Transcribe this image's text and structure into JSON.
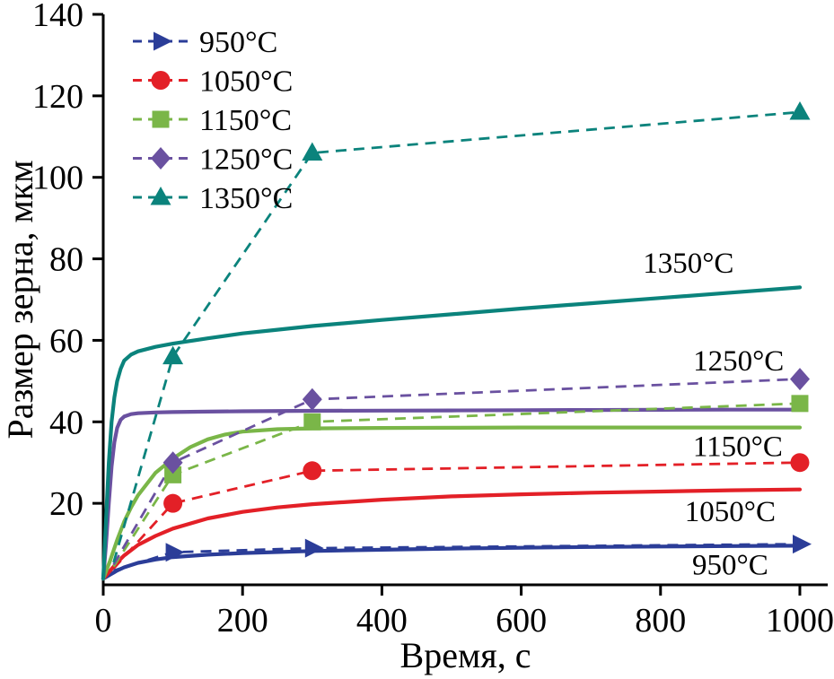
{
  "figure": {
    "xlabel": "Время, с",
    "ylabel": "Размер зерна, мкм"
  },
  "chart_data": {
    "type": "line",
    "title": "",
    "xlabel": "Время, с",
    "ylabel": "Размер зерна, мкм",
    "xlim": [
      0,
      1040
    ],
    "ylim": [
      0,
      140
    ],
    "xticks": [
      0,
      200,
      400,
      600,
      800,
      1000
    ],
    "yticks": [
      20,
      40,
      60,
      80,
      100,
      120,
      140
    ],
    "grid": false,
    "legend_position": "top-left",
    "axis_color": "#000000",
    "series": [
      {
        "name": "950°C",
        "color": "#2b3d98",
        "marker": "triangle-right",
        "experimental": {
          "x": [
            15,
            100,
            300,
            1000
          ],
          "y": [
            3.5,
            8,
            9,
            10
          ],
          "marker_start_index": 1
        },
        "model": {
          "x": [
            0,
            10,
            20,
            30,
            50,
            75,
            100,
            150,
            200,
            300,
            400,
            500,
            600,
            700,
            800,
            900,
            1000
          ],
          "y": [
            1.5,
            2.5,
            3.5,
            4.3,
            5.4,
            6.2,
            6.8,
            7.4,
            7.8,
            8.3,
            8.6,
            8.9,
            9.1,
            9.3,
            9.4,
            9.5,
            9.6
          ]
        }
      },
      {
        "name": "1050°C",
        "color": "#e32027",
        "marker": "circle",
        "experimental": {
          "x": [
            15,
            100,
            300,
            1000
          ],
          "y": [
            4,
            20,
            28,
            30
          ],
          "marker_start_index": 1
        },
        "model": {
          "x": [
            0,
            10,
            20,
            30,
            50,
            75,
            100,
            150,
            200,
            250,
            300,
            400,
            500,
            600,
            700,
            800,
            900,
            1000
          ],
          "y": [
            1.5,
            3.5,
            5.5,
            7.2,
            9.8,
            12,
            13.8,
            16.3,
            17.9,
            19,
            19.8,
            20.9,
            21.7,
            22.2,
            22.6,
            22.9,
            23.2,
            23.4
          ]
        }
      },
      {
        "name": "1150°C",
        "color": "#7ab648",
        "marker": "square",
        "experimental": {
          "x": [
            15,
            100,
            300,
            1000
          ],
          "y": [
            4.5,
            27,
            40,
            44.5
          ],
          "marker_start_index": 1
        },
        "model": {
          "x": [
            0,
            10,
            20,
            30,
            40,
            50,
            75,
            100,
            125,
            150,
            175,
            200,
            250,
            300,
            400,
            500,
            600,
            800,
            1000
          ],
          "y": [
            1.5,
            6,
            11,
            15.5,
            19,
            22,
            27.5,
            31,
            33.8,
            35.7,
            36.9,
            37.6,
            38.2,
            38.4,
            38.5,
            38.55,
            38.6,
            38.6,
            38.6
          ]
        }
      },
      {
        "name": "1250°C",
        "color": "#6a51a0",
        "marker": "diamond",
        "experimental": {
          "x": [
            15,
            100,
            300,
            1000
          ],
          "y": [
            5,
            30,
            45.5,
            50.5
          ],
          "marker_start_index": 1
        },
        "model": {
          "x": [
            0,
            4,
            8,
            12,
            16,
            20,
            25,
            30,
            40,
            50,
            75,
            100,
            150,
            200,
            300,
            400,
            500,
            600,
            700,
            800,
            900,
            1000
          ],
          "y": [
            1.5,
            10,
            20,
            29,
            35,
            38.5,
            40.5,
            41.3,
            41.9,
            42.1,
            42.3,
            42.4,
            42.5,
            42.6,
            42.7,
            42.75,
            42.8,
            42.85,
            42.9,
            42.95,
            43,
            43
          ]
        }
      },
      {
        "name": "1350°C",
        "color": "#0b837c",
        "marker": "triangle-up",
        "experimental": {
          "x": [
            15,
            100,
            300,
            1000
          ],
          "y": [
            5.5,
            56,
            106,
            116
          ],
          "marker_start_index": 1
        },
        "model": {
          "x": [
            0,
            4,
            8,
            12,
            16,
            20,
            25,
            30,
            40,
            50,
            75,
            100,
            150,
            200,
            250,
            300,
            400,
            500,
            600,
            700,
            800,
            900,
            1000
          ],
          "y": [
            1.5,
            16,
            30,
            40,
            46,
            50,
            53,
            55,
            56.5,
            57.3,
            58.4,
            59.2,
            60.5,
            61.7,
            62.6,
            63.5,
            65,
            66.4,
            67.8,
            69.1,
            70.4,
            71.7,
            73
          ]
        }
      }
    ],
    "curve_labels": [
      {
        "text": "1350°C",
        "x": 840,
        "y": 79
      },
      {
        "text": "1250°C",
        "x": 912,
        "y": 55
      },
      {
        "text": "1150°C",
        "x": 911,
        "y": 34
      },
      {
        "text": "1050°C",
        "x": 900,
        "y": 18
      },
      {
        "text": "950°C",
        "x": 900,
        "y": 5
      }
    ]
  }
}
